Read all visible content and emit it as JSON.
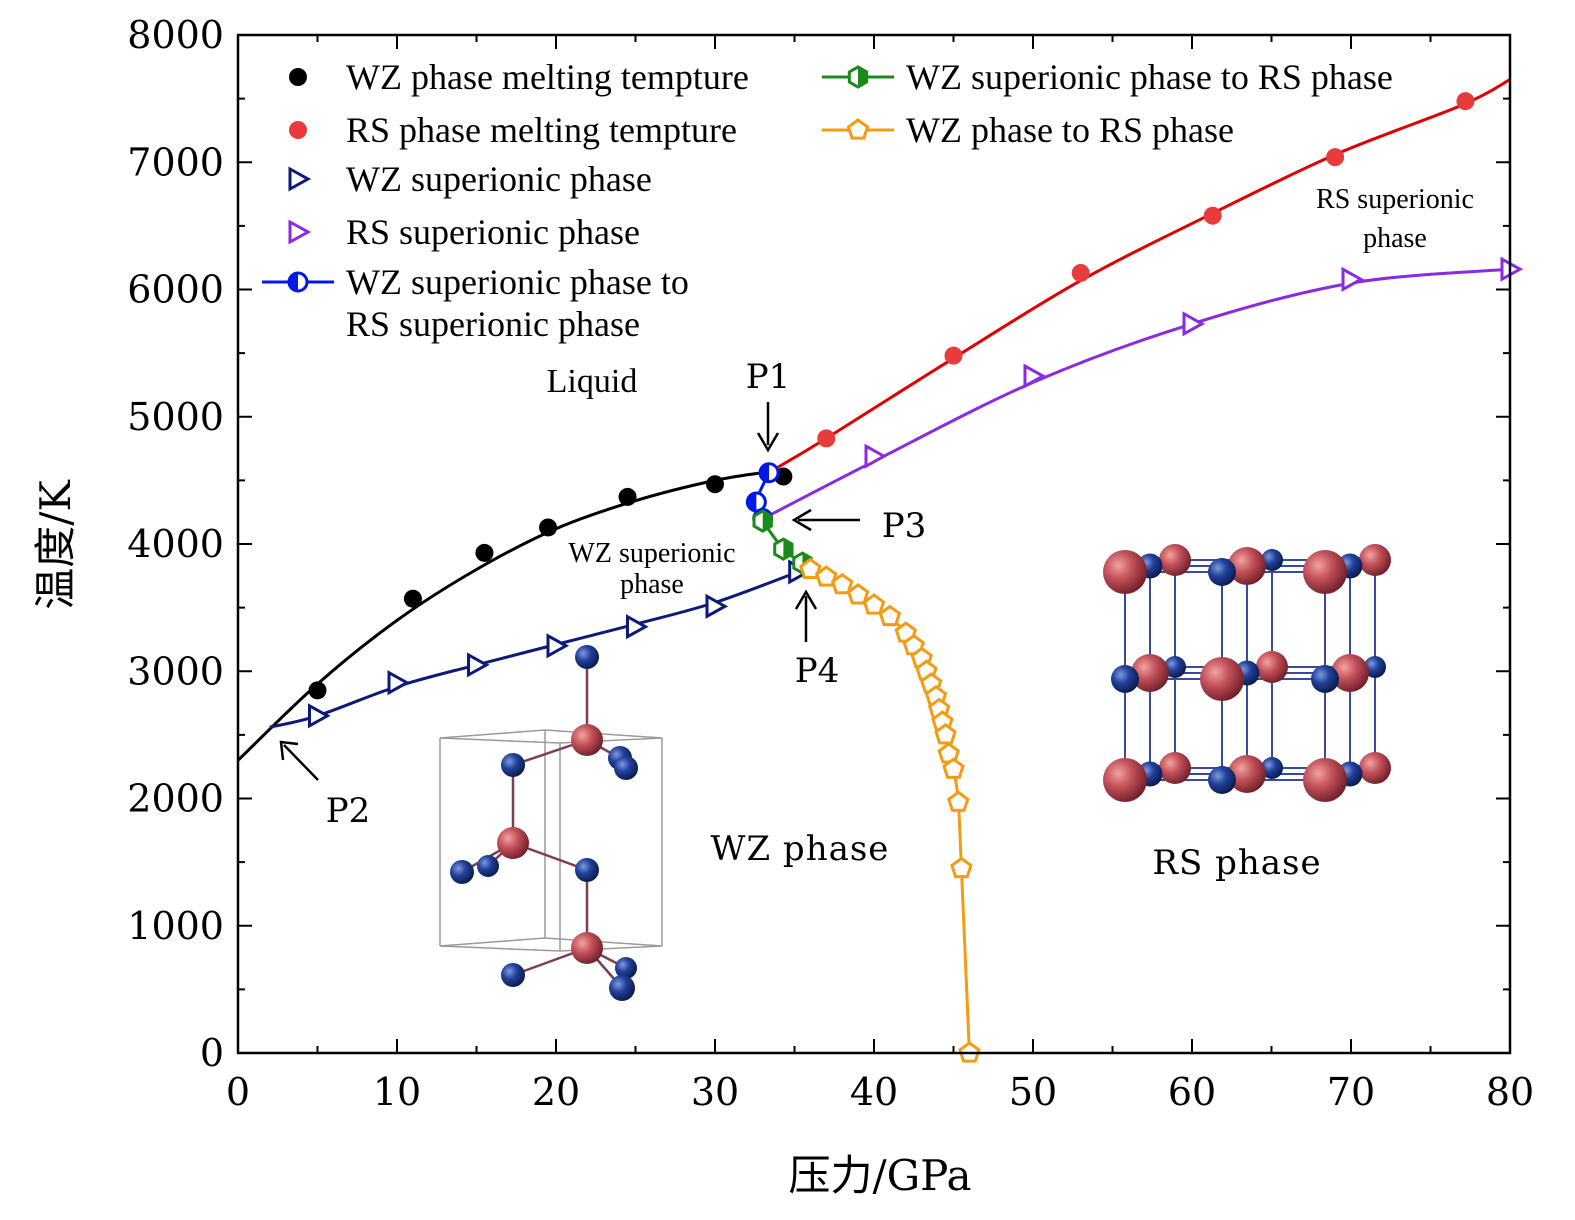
{
  "chart_data": {
    "type": "scatter",
    "xlabel": "压力/GPa",
    "ylabel": "温度/K",
    "xlim": [
      0,
      80
    ],
    "ylim": [
      0,
      8000
    ],
    "xticks": [
      0,
      10,
      20,
      30,
      40,
      50,
      60,
      70,
      80
    ],
    "yticks": [
      0,
      1000,
      2000,
      3000,
      4000,
      5000,
      6000,
      7000,
      8000
    ],
    "grid": false,
    "legend_position": "top-left",
    "series": [
      {
        "key": "wz_melt",
        "name": "WZ phase melting tempture",
        "color": "#000000",
        "marker": "circle",
        "points": [
          [
            5,
            2850
          ],
          [
            11,
            3570
          ],
          [
            15.5,
            3930
          ],
          [
            19.5,
            4130
          ],
          [
            24.5,
            4370
          ],
          [
            30,
            4470
          ],
          [
            34.3,
            4530
          ]
        ],
        "curve": [
          [
            0,
            2300
          ],
          [
            5,
            2900
          ],
          [
            10,
            3400
          ],
          [
            15,
            3800
          ],
          [
            20,
            4120
          ],
          [
            25,
            4340
          ],
          [
            30,
            4500
          ],
          [
            33.5,
            4570
          ]
        ]
      },
      {
        "key": "rs_melt",
        "name": "RS phase melting tempture",
        "color": "#e83c3c",
        "line_color": "#e00000",
        "marker": "circle",
        "points": [
          [
            37,
            4830
          ],
          [
            45,
            5480
          ],
          [
            53,
            6130
          ],
          [
            61.3,
            6580
          ],
          [
            69,
            7040
          ],
          [
            77.2,
            7480
          ]
        ],
        "curve": [
          [
            33.5,
            4570
          ],
          [
            37,
            4830
          ],
          [
            45,
            5460
          ],
          [
            53,
            6070
          ],
          [
            61,
            6580
          ],
          [
            69,
            7060
          ],
          [
            77,
            7450
          ],
          [
            80,
            7650
          ]
        ]
      },
      {
        "key": "wz_sup",
        "name": "WZ superionic phase",
        "color": "#0d1a7a",
        "marker": "triangle-right",
        "points": [
          [
            5,
            2650
          ],
          [
            10,
            2910
          ],
          [
            15,
            3050
          ],
          [
            20,
            3200
          ],
          [
            25,
            3350
          ],
          [
            30,
            3510
          ],
          [
            35.2,
            3780
          ]
        ],
        "curve": [
          [
            2,
            2560
          ],
          [
            5,
            2650
          ],
          [
            10,
            2880
          ],
          [
            15,
            3050
          ],
          [
            20,
            3210
          ],
          [
            25,
            3370
          ],
          [
            30,
            3540
          ],
          [
            35.2,
            3780
          ]
        ]
      },
      {
        "key": "rs_sup",
        "name": "RS superionic phase",
        "color": "#8a2be2",
        "marker": "triangle-right",
        "points": [
          [
            40,
            4690
          ],
          [
            50,
            5320
          ],
          [
            60,
            5730
          ],
          [
            70,
            6080
          ],
          [
            80,
            6160
          ]
        ],
        "curve": [
          [
            33.5,
            4230
          ],
          [
            40,
            4650
          ],
          [
            50,
            5270
          ],
          [
            60,
            5730
          ],
          [
            70,
            6050
          ],
          [
            80,
            6160
          ]
        ]
      },
      {
        "key": "wz_sup_rs_sup",
        "name": "WZ superionic phase to RS superionic phase",
        "name_lines": [
          "WZ superionic phase to",
          "RS superionic phase"
        ],
        "color": "#0019e6",
        "marker": "half-circle",
        "points": [
          [
            33.4,
            4560
          ],
          [
            32.6,
            4330
          ],
          [
            33,
            4200
          ]
        ],
        "curve": [
          [
            33.4,
            4560
          ],
          [
            32.6,
            4330
          ],
          [
            33,
            4200
          ]
        ]
      },
      {
        "key": "wz_sup_rs",
        "name": "WZ superionic phase to RS phase",
        "color": "#1a8a1a",
        "marker": "hexagon",
        "points": [
          [
            33,
            4180
          ],
          [
            34.3,
            3960
          ],
          [
            35.5,
            3850
          ]
        ],
        "curve": [
          [
            33,
            4180
          ],
          [
            34.3,
            3960
          ],
          [
            35.5,
            3850
          ]
        ]
      },
      {
        "key": "wz_rs",
        "name": "WZ phase to RS phase",
        "color": "#f39c12",
        "marker": "pentagon",
        "points": [
          [
            36,
            3800
          ],
          [
            37,
            3740
          ],
          [
            38,
            3680
          ],
          [
            39,
            3600
          ],
          [
            40,
            3520
          ],
          [
            41,
            3430
          ],
          [
            42,
            3300
          ],
          [
            42.5,
            3200
          ],
          [
            43,
            3100
          ],
          [
            43.3,
            3000
          ],
          [
            43.6,
            2900
          ],
          [
            43.9,
            2800
          ],
          [
            44.1,
            2700
          ],
          [
            44.3,
            2600
          ],
          [
            44.5,
            2500
          ],
          [
            44.7,
            2350
          ],
          [
            45,
            2230
          ],
          [
            45.3,
            1970
          ],
          [
            45.5,
            1450
          ],
          [
            46,
            0
          ]
        ],
        "curve": [
          [
            35.5,
            3840
          ],
          [
            38,
            3680
          ],
          [
            40,
            3520
          ],
          [
            42,
            3300
          ],
          [
            43.3,
            3000
          ],
          [
            44.3,
            2600
          ],
          [
            45,
            2230
          ],
          [
            45.3,
            1970
          ],
          [
            45.5,
            1450
          ],
          [
            46,
            0
          ]
        ]
      }
    ],
    "annotations": {
      "regions": {
        "liquid": "Liquid",
        "wz_sup_1": "WZ superionic",
        "wz_sup_2": "phase",
        "rs_sup_1": "RS superionic",
        "rs_sup_2": "phase",
        "wz_phase": "WZ phase",
        "rs_phase": "RS phase"
      },
      "points": {
        "p1": "P1",
        "p2": "P2",
        "p3": "P3",
        "p4": "P4"
      }
    },
    "insets": {
      "wz_structure": "wurtzite",
      "rs_structure": "rocksalt",
      "atom_colors": {
        "cation": "#c0494f",
        "anion": "#1f3b8c"
      }
    }
  }
}
